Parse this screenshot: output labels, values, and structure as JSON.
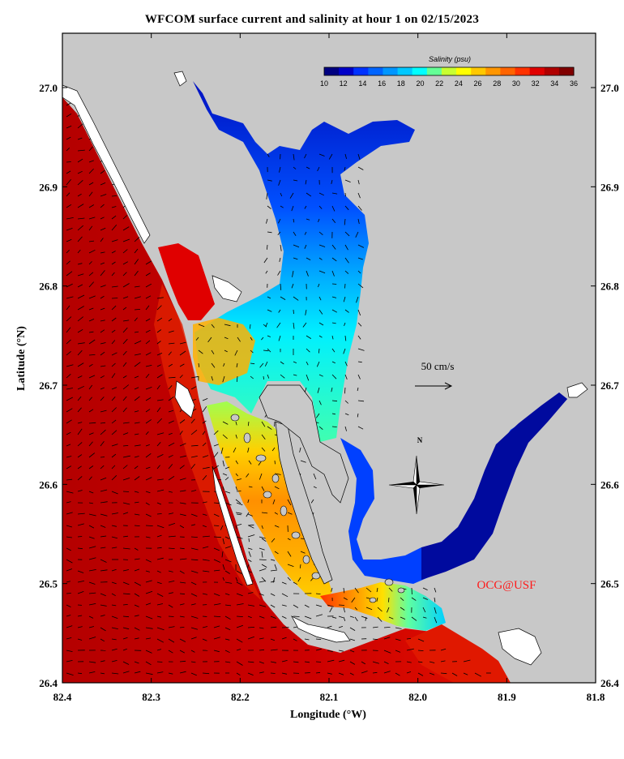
{
  "title": "WFCOM surface current and salinity at hour 1 on 02/15/2023",
  "axes": {
    "xlabel": "Longitude (°W)",
    "ylabel": "Latitude (°N)",
    "x_ticks": [
      "82.4",
      "82.3",
      "82.2",
      "82.1",
      "82.0",
      "81.9",
      "81.8"
    ],
    "y_ticks": [
      "27.0",
      "26.9",
      "26.8",
      "26.7",
      "26.6",
      "26.5",
      "26.4"
    ]
  },
  "colorbar": {
    "title": "Salinity (psu)",
    "ticks": [
      "10",
      "12",
      "14",
      "16",
      "18",
      "20",
      "22",
      "24",
      "26",
      "28",
      "30",
      "32",
      "34",
      "36"
    ],
    "colors": [
      "#000080",
      "#0000c8",
      "#0032ff",
      "#0064ff",
      "#0096ff",
      "#00c8ff",
      "#00ffff",
      "#64ff96",
      "#c8ff32",
      "#ffff00",
      "#ffc800",
      "#ff9600",
      "#ff6400",
      "#ff3200",
      "#e00000",
      "#b00000",
      "#800000"
    ]
  },
  "scale_vector": {
    "label": "50 cm/s"
  },
  "compass": {
    "label": "N"
  },
  "credit": "OCG@USF",
  "colors": {
    "land": "#c8c8c8",
    "gulf_salinity": "#c80000"
  }
}
